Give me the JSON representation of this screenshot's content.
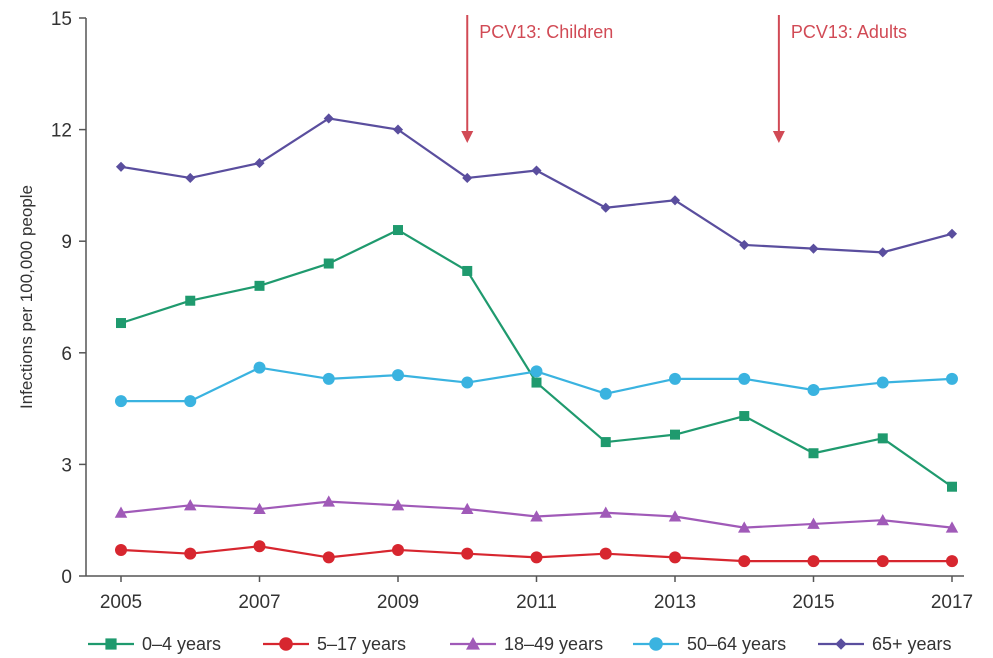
{
  "chart_data": {
    "type": "line",
    "title": "",
    "xlabel": "",
    "ylabel": "Infections per 100,000 people",
    "x": [
      2005,
      2006,
      2007,
      2008,
      2009,
      2010,
      2011,
      2012,
      2013,
      2014,
      2015,
      2016,
      2017
    ],
    "x_tick_labels": [
      "2005",
      "2007",
      "2009",
      "2011",
      "2013",
      "2015",
      "2017"
    ],
    "y_tick_labels": [
      "0",
      "3",
      "6",
      "9",
      "12",
      "15"
    ],
    "xlim": [
      2005,
      2017
    ],
    "ylim": [
      0,
      15
    ],
    "grid": false,
    "legend_position": "bottom",
    "series": [
      {
        "name": "0–4 years",
        "color": "#1f9a6e",
        "marker": "square",
        "values": [
          6.8,
          7.4,
          7.8,
          8.4,
          9.3,
          8.2,
          5.2,
          3.6,
          3.8,
          4.3,
          3.3,
          3.7,
          2.4
        ]
      },
      {
        "name": "5–17 years",
        "color": "#d7262f",
        "marker": "circle",
        "values": [
          0.7,
          0.6,
          0.8,
          0.5,
          0.7,
          0.6,
          0.5,
          0.6,
          0.5,
          0.4,
          0.4,
          0.4,
          0.4
        ]
      },
      {
        "name": "18–49 years",
        "color": "#a05ab8",
        "marker": "triangle",
        "values": [
          1.7,
          1.9,
          1.8,
          2.0,
          1.9,
          1.8,
          1.6,
          1.7,
          1.6,
          1.3,
          1.4,
          1.5,
          1.3
        ]
      },
      {
        "name": "50–64 years",
        "color": "#3ab3e0",
        "marker": "circle",
        "values": [
          4.7,
          4.7,
          5.6,
          5.3,
          5.4,
          5.2,
          5.5,
          4.9,
          5.3,
          5.3,
          5.0,
          5.2,
          5.3
        ]
      },
      {
        "name": "65+ years",
        "color": "#5a4e9e",
        "marker": "diamond",
        "values": [
          11.0,
          10.7,
          11.1,
          12.3,
          12.0,
          10.7,
          10.9,
          9.9,
          10.1,
          8.9,
          8.8,
          8.7,
          9.2
        ]
      }
    ],
    "annotations": [
      {
        "text": "PCV13: Children",
        "x": 2010,
        "color": "#d14a55"
      },
      {
        "text": "PCV13: Adults",
        "x": 2014.5,
        "color": "#d14a55"
      }
    ]
  }
}
